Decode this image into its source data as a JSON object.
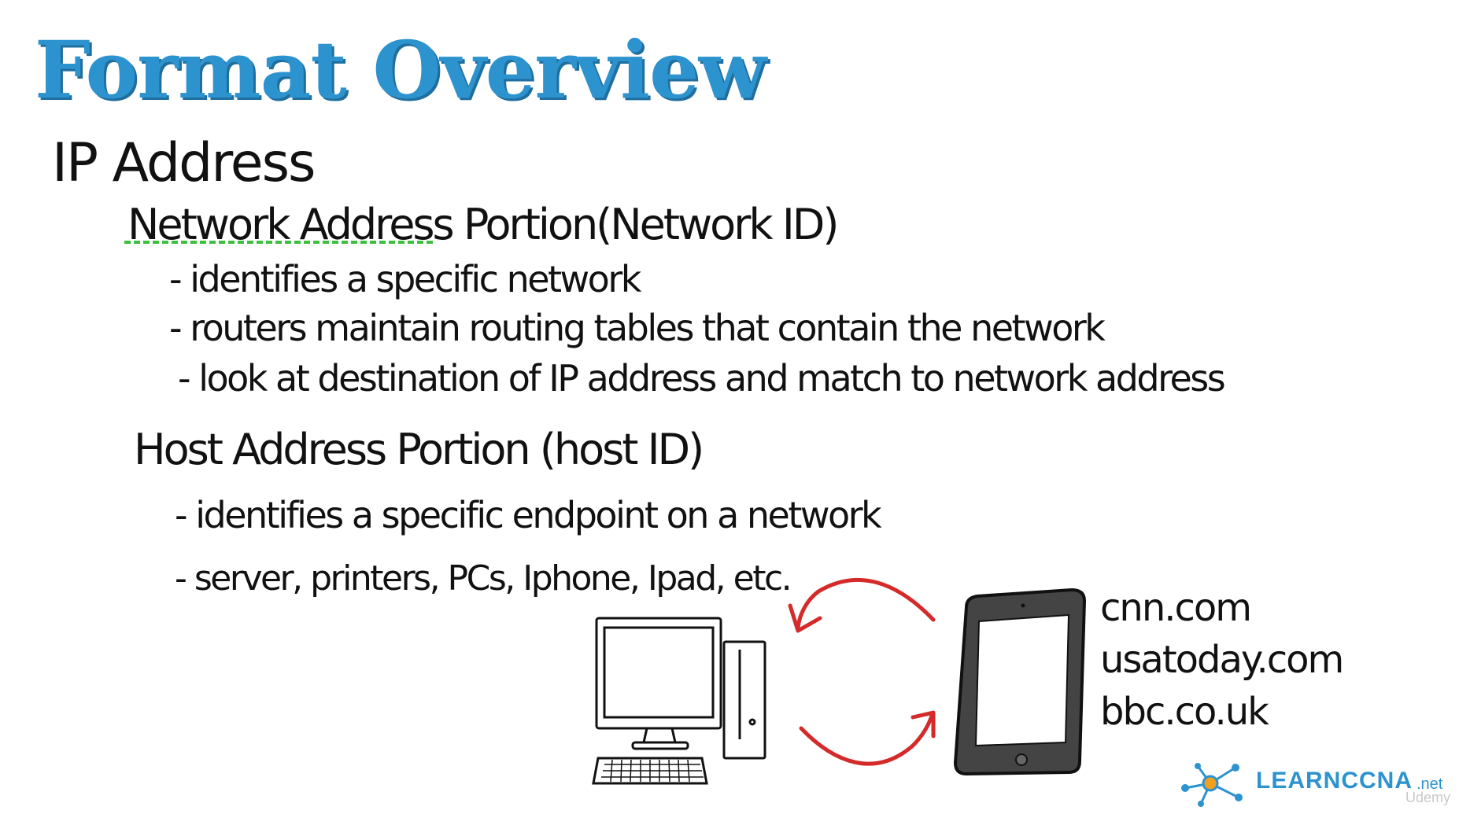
{
  "slide": {
    "title": "Format Overview",
    "heading": "IP Address",
    "network": {
      "heading": "Network Address Portion(Network ID)",
      "bullets": [
        "- identifies a specific network",
        "- routers maintain routing tables that contain the network",
        "- look at destination of IP address and match to network address"
      ]
    },
    "host": {
      "heading": "Host Address Portion (host ID)",
      "bullets": [
        "- identifies a specific endpoint on a network",
        "- server, printers, PCs, Iphone, Ipad, etc."
      ]
    },
    "domains": [
      "cnn.com",
      "usatoday.com",
      "bbc.co.uk"
    ],
    "illustration": {
      "left_device": "desktop-computer-icon",
      "right_device": "tablet-icon",
      "arrow_color": "#d42a2a"
    },
    "logo": {
      "text": "LEARNCCNA",
      "suffix": ".net",
      "color": "#2d93cf"
    },
    "watermark": "Udemy",
    "colors": {
      "title": "#2d93cf",
      "underline": "#3fbf3f"
    }
  }
}
